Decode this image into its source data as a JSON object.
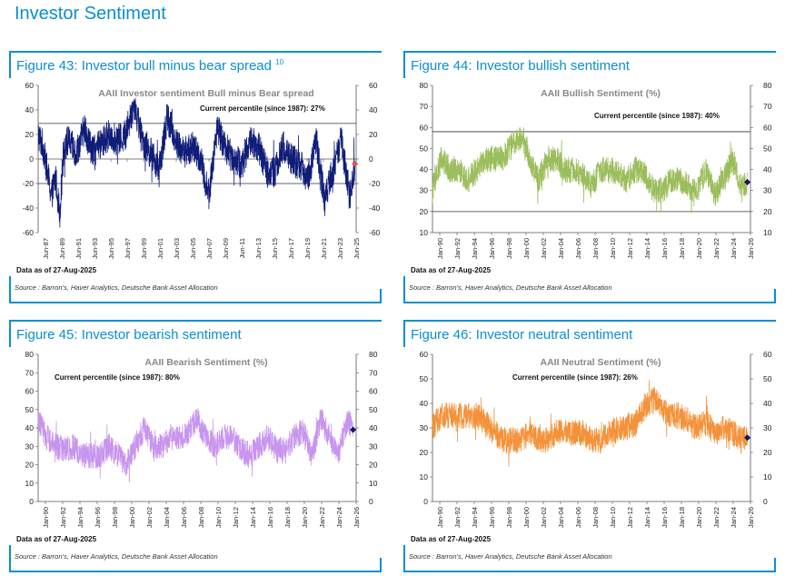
{
  "page": {
    "title": "Investor Sentiment"
  },
  "panels": [
    {
      "figure_title": "Figure 43: Investor bull minus bear spread",
      "footnote_ref": "10",
      "source": "Source : Barron's, Haver Analytics, Deutsche Bank Asset Allocation"
    },
    {
      "figure_title": "Figure 44: Investor bullish sentiment",
      "source": "Source : Barron's, Haver Analytics, Deutsche Bank Asset Allocation"
    },
    {
      "figure_title": "Figure 45: Investor bearish sentiment",
      "source": "Source : Barron's, Haver Analytics, Deutsche Bank Asset Allocation"
    },
    {
      "figure_title": "Figure 46: Investor neutral sentiment",
      "source": "Source : Barron's, Haver Analytics, Deutsche Bank Asset Allocation"
    }
  ],
  "chart_data": [
    {
      "type": "line",
      "title": "AAII Investor sentiment Bull minus Bear spread",
      "annotation": "Current percentile (since 1987): 27%",
      "note": "Data as of 27-Aug-2025",
      "x_range": [
        1987.4,
        2025.8
      ],
      "x_ticks": [
        "Jun-87",
        "Jun-89",
        "Jun-91",
        "Jun-93",
        "Jun-95",
        "Jun-97",
        "Jun-99",
        "Jun-01",
        "Jun-03",
        "Jun-05",
        "Jun-07",
        "Jun-09",
        "Jun-11",
        "Jun-13",
        "Jun-15",
        "Jun-17",
        "Jun-19",
        "Jun-21",
        "Jun-23",
        "Jun-25"
      ],
      "ylim": [
        -60,
        60
      ],
      "y_ticks": [
        -60,
        -40,
        -20,
        0,
        20,
        40,
        60
      ],
      "reference_lines": [
        29,
        -20
      ],
      "grid": false,
      "legend": "none",
      "series_color": "#0f1c78",
      "marker_color": "#e05050",
      "current": {
        "x": 2025.65,
        "y": -4
      },
      "series": [
        {
          "x": [
            1987.4,
            1988,
            1989,
            1989.5,
            1990,
            1990.5,
            1991,
            1992,
            1993,
            1994,
            1995,
            1996,
            1997,
            1998,
            1999,
            2000,
            2001,
            2002,
            2003,
            2004,
            2005,
            2006,
            2007,
            2008,
            2009,
            2010,
            2011,
            2012,
            2013,
            2014,
            2015,
            2016,
            2017,
            2018,
            2019,
            2020,
            2021,
            2022,
            2022.5,
            2023,
            2024,
            2025,
            2025.65
          ],
          "y": [
            20,
            10,
            -30,
            -15,
            -45,
            10,
            15,
            5,
            25,
            5,
            12,
            20,
            15,
            20,
            45,
            15,
            5,
            -10,
            35,
            15,
            5,
            10,
            0,
            -30,
            25,
            10,
            0,
            -5,
            15,
            10,
            -10,
            -10,
            10,
            0,
            -5,
            -15,
            15,
            -35,
            -20,
            -10,
            15,
            -30,
            -4
          ]
        }
      ]
    },
    {
      "type": "line",
      "title": "AAII Bullish Sentiment (%)",
      "annotation": "Current percentile (since 1987): 40%",
      "note": "Data as of 27-Aug-2025",
      "x_range": [
        1990.0,
        2026.0
      ],
      "x_ticks": [
        "Jan-90",
        "Jan-92",
        "Jan-94",
        "Jan-96",
        "Jan-98",
        "Jan-00",
        "Jan-02",
        "Jan-04",
        "Jan-06",
        "Jan-08",
        "Jan-10",
        "Jan-12",
        "Jan-14",
        "Jan-16",
        "Jan-18",
        "Jan-20",
        "Jan-22",
        "Jan-24",
        "Jan-26"
      ],
      "ylim": [
        10,
        80
      ],
      "y_ticks": [
        10,
        20,
        30,
        40,
        50,
        60,
        70,
        80
      ],
      "reference_lines": [
        58,
        20
      ],
      "grid": false,
      "legend": "none",
      "series_color": "#9cbd5c",
      "marker_color": "#14185c",
      "current": {
        "x": 2025.65,
        "y": 34
      },
      "series": [
        {
          "x": [
            1990,
            1991,
            1992,
            1993,
            1994,
            1995,
            1996,
            1997,
            1998,
            1999,
            2000,
            2001,
            2002,
            2003,
            2004,
            2005,
            2006,
            2007,
            2008,
            2009,
            2010,
            2011,
            2012,
            2013,
            2014,
            2015,
            2016,
            2017,
            2018,
            2019,
            2020,
            2021,
            2022,
            2023,
            2024,
            2025,
            2025.65
          ],
          "y": [
            30,
            45,
            40,
            40,
            35,
            40,
            45,
            45,
            45,
            52,
            55,
            45,
            35,
            45,
            45,
            40,
            40,
            38,
            32,
            40,
            40,
            38,
            35,
            40,
            38,
            30,
            30,
            35,
            35,
            32,
            30,
            40,
            28,
            35,
            45,
            30,
            34
          ]
        }
      ]
    },
    {
      "type": "line",
      "title": "AAII Bearish Sentiment (%)",
      "annotation": "Current percentile (since 1987): 80%",
      "note": "Data as of 27-Aug-2025",
      "x_range": [
        1990.0,
        2026.0
      ],
      "x_ticks": [
        "Jan-90",
        "Jan-92",
        "Jan-94",
        "Jan-96",
        "Jan-98",
        "Jan-00",
        "Jan-02",
        "Jan-04",
        "Jan-06",
        "Jan-08",
        "Jan-10",
        "Jan-12",
        "Jan-14",
        "Jan-16",
        "Jan-18",
        "Jan-20",
        "Jan-22",
        "Jan-24",
        "Jan-26"
      ],
      "ylim": [
        0,
        80
      ],
      "y_ticks": [
        0,
        10,
        20,
        30,
        40,
        50,
        60,
        70,
        80
      ],
      "reference_lines": [],
      "grid": false,
      "legend": "none",
      "series_color": "#c895ee",
      "marker_color": "#14185c",
      "current": {
        "x": 2025.65,
        "y": 39
      },
      "series": [
        {
          "x": [
            1990,
            1991,
            1992,
            1993,
            1994,
            1995,
            1996,
            1997,
            1998,
            1999,
            2000,
            2001,
            2002,
            2003,
            2004,
            2005,
            2006,
            2007,
            2008,
            2009,
            2010,
            2011,
            2012,
            2013,
            2014,
            2015,
            2016,
            2017,
            2018,
            2019,
            2020,
            2021,
            2022,
            2023,
            2024,
            2025,
            2025.65
          ],
          "y": [
            45,
            35,
            30,
            28,
            30,
            25,
            25,
            25,
            30,
            25,
            20,
            30,
            40,
            30,
            30,
            35,
            35,
            38,
            45,
            35,
            30,
            35,
            35,
            28,
            25,
            30,
            35,
            28,
            28,
            35,
            38,
            25,
            45,
            35,
            25,
            45,
            39
          ]
        }
      ]
    },
    {
      "type": "line",
      "title": "AAII Neutral Sentiment (%)",
      "annotation": "Current percentile (since 1987): 26%",
      "note": "Data as of 27-Aug-2025",
      "x_range": [
        1990.0,
        2026.0
      ],
      "x_ticks": [
        "Jan-90",
        "Jan-92",
        "Jan-94",
        "Jan-96",
        "Jan-98",
        "Jan-00",
        "Jan-02",
        "Jan-04",
        "Jan-06",
        "Jan-08",
        "Jan-10",
        "Jan-12",
        "Jan-14",
        "Jan-16",
        "Jan-18",
        "Jan-20",
        "Jan-22",
        "Jan-24",
        "Jan-26"
      ],
      "ylim": [
        0,
        60
      ],
      "y_ticks": [
        0,
        10,
        20,
        30,
        40,
        50,
        60
      ],
      "reference_lines": [],
      "grid": false,
      "legend": "none",
      "series_color": "#f4923a",
      "marker_color": "#14185c",
      "current": {
        "x": 2025.65,
        "y": 26
      },
      "series": [
        {
          "x": [
            1990,
            1991,
            1992,
            1993,
            1994,
            1995,
            1996,
            1997,
            1998,
            1999,
            2000,
            2001,
            2002,
            2003,
            2004,
            2005,
            2006,
            2007,
            2008,
            2009,
            2010,
            2011,
            2012,
            2013,
            2014,
            2015,
            2016,
            2017,
            2018,
            2019,
            2020,
            2021,
            2022,
            2023,
            2024,
            2025,
            2025.65
          ],
          "y": [
            30,
            35,
            35,
            35,
            35,
            35,
            32,
            28,
            25,
            25,
            25,
            28,
            25,
            25,
            28,
            28,
            28,
            28,
            25,
            25,
            28,
            30,
            30,
            32,
            38,
            42,
            38,
            35,
            35,
            32,
            30,
            32,
            28,
            30,
            28,
            25,
            26
          ]
        }
      ]
    }
  ]
}
